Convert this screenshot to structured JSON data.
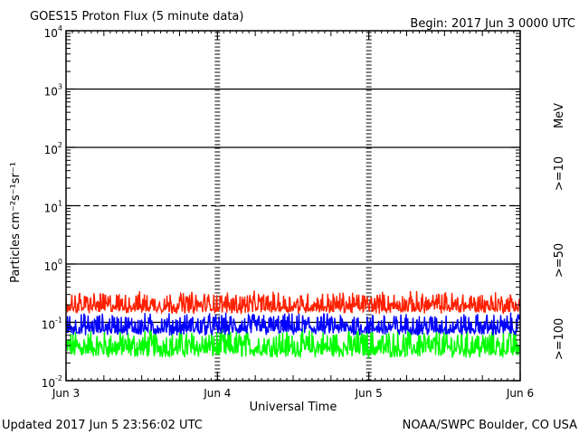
{
  "chart_data": {
    "type": "line",
    "title": "GOES15 Proton Flux (5 minute data)",
    "begin_label": "Begin: 2017 Jun 3 0000 UTC",
    "xlabel": "Universal Time",
    "ylabel": "Particles cm⁻²s⁻¹sr⁻¹",
    "y_scale": "log",
    "ylim": [
      0.01,
      10000
    ],
    "y_ticks": [
      {
        "base": "10",
        "exp": "4"
      },
      {
        "base": "10",
        "exp": "3"
      },
      {
        "base": "10",
        "exp": "2"
      },
      {
        "base": "10",
        "exp": "1"
      },
      {
        "base": "10",
        "exp": "0"
      },
      {
        "base": "10",
        "exp": "-1"
      },
      {
        "base": "10",
        "exp": "-2"
      }
    ],
    "x_ticks": [
      "Jun 3",
      "Jun 4",
      "Jun 5",
      "Jun 6"
    ],
    "xlim_days": [
      0,
      3
    ],
    "reference_lines": [
      {
        "value": 1000,
        "style": "solid"
      },
      {
        "value": 100,
        "style": "solid"
      },
      {
        "value": 10,
        "style": "dashed"
      },
      {
        "value": 1,
        "style": "solid"
      },
      {
        "value": 0.1,
        "style": "solid"
      }
    ],
    "unit_label": "MeV",
    "series": [
      {
        "name": ">=10",
        "color": "#ff2000",
        "approx_range": [
          0.12,
          0.35
        ]
      },
      {
        "name": ">=50",
        "color": "#0000ff",
        "approx_range": [
          0.05,
          0.15
        ]
      },
      {
        "name": ">=100",
        "color": "#00ff00",
        "approx_range": [
          0.02,
          0.08
        ]
      }
    ]
  },
  "footer": {
    "updated": "Updated 2017 Jun  5 23:56:02 UTC",
    "credit": "NOAA/SWPC Boulder, CO USA"
  }
}
